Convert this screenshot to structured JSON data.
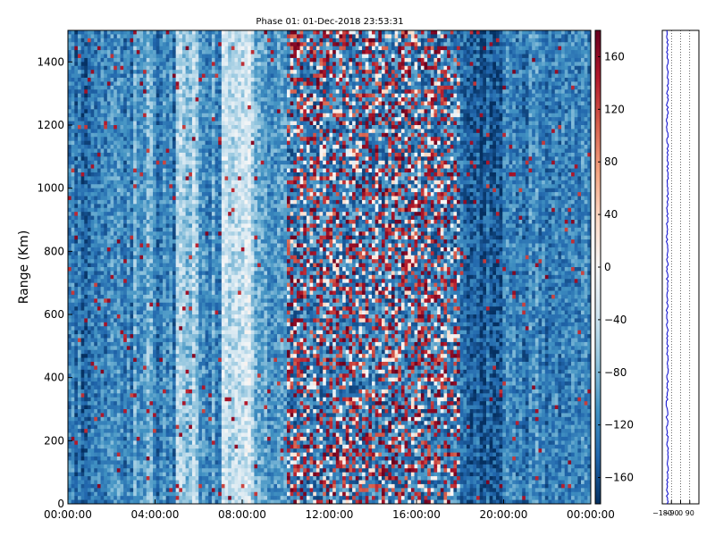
{
  "chart_data": [
    {
      "type": "heatmap",
      "title": "Phase 01: 01-Dec-2018 23:53:31",
      "xlabel": "",
      "ylabel": "Range (Km)",
      "xlim": [
        "00:00:00",
        "24:00:00"
      ],
      "ylim": [
        0,
        1500
      ],
      "xticks": [
        "00:00:00",
        "04:00:00",
        "08:00:00",
        "12:00:00",
        "16:00:00",
        "20:00:00",
        "00:00:00"
      ],
      "yticks": [
        0,
        200,
        400,
        600,
        800,
        1000,
        1200,
        1400
      ],
      "colormap": "RdBu_r",
      "colorbar": {
        "range": [
          -180,
          180
        ],
        "ticks": [
          160,
          120,
          80,
          40,
          0,
          -40,
          -80,
          -120,
          -160
        ],
        "tick_labels": [
          "160",
          "120",
          "80",
          "40",
          "0",
          "−40",
          "−80",
          "−120",
          "−160"
        ]
      },
      "cell_values_deg": {
        "columns": 160,
        "rows": 120,
        "profile_by_hour": [
          {
            "hour": 0,
            "typical_phase": -130
          },
          {
            "hour": 2,
            "typical_phase": -120
          },
          {
            "hour": 3,
            "typical_phase": -95
          },
          {
            "hour": 4,
            "typical_phase": -120
          },
          {
            "hour": 5,
            "typical_phase": -60
          },
          {
            "hour": 6,
            "typical_phase": -110
          },
          {
            "hour": 7,
            "typical_phase": -40
          },
          {
            "hour": 8.5,
            "typical_phase": -100
          },
          {
            "hour": 10,
            "typical_phase": "mixed"
          },
          {
            "hour": 13,
            "typical_phase": "mixed"
          },
          {
            "hour": 15,
            "typical_phase": "mixed"
          },
          {
            "hour": 16.5,
            "typical_phase": "mixed"
          },
          {
            "hour": 18,
            "typical_phase": -150
          },
          {
            "hour": 20,
            "typical_phase": -120
          },
          {
            "hour": 22,
            "typical_phase": -125
          },
          {
            "hour": 24,
            "typical_phase": -130
          }
        ]
      }
    },
    {
      "type": "line",
      "xlabel": "",
      "ylabel": "",
      "xlim": [
        -180,
        180
      ],
      "ylim": [
        0,
        1500
      ],
      "xticks": [
        -180,
        -90,
        0,
        90
      ],
      "xtick_labels": [
        "−180",
        "−90",
        "0",
        "90"
      ],
      "series": [
        {
          "color": "#0000cc",
          "mean_phase": -130,
          "range_km": [
            0,
            150,
            300,
            450,
            600,
            750,
            900,
            1050,
            1200,
            1350,
            1500
          ],
          "phase_deg": [
            -131,
            -128,
            -134,
            -127,
            -132,
            -129,
            -133,
            -126,
            -131,
            -128,
            -130
          ]
        }
      ],
      "grid": "vertical dotted at x ticks"
    }
  ]
}
